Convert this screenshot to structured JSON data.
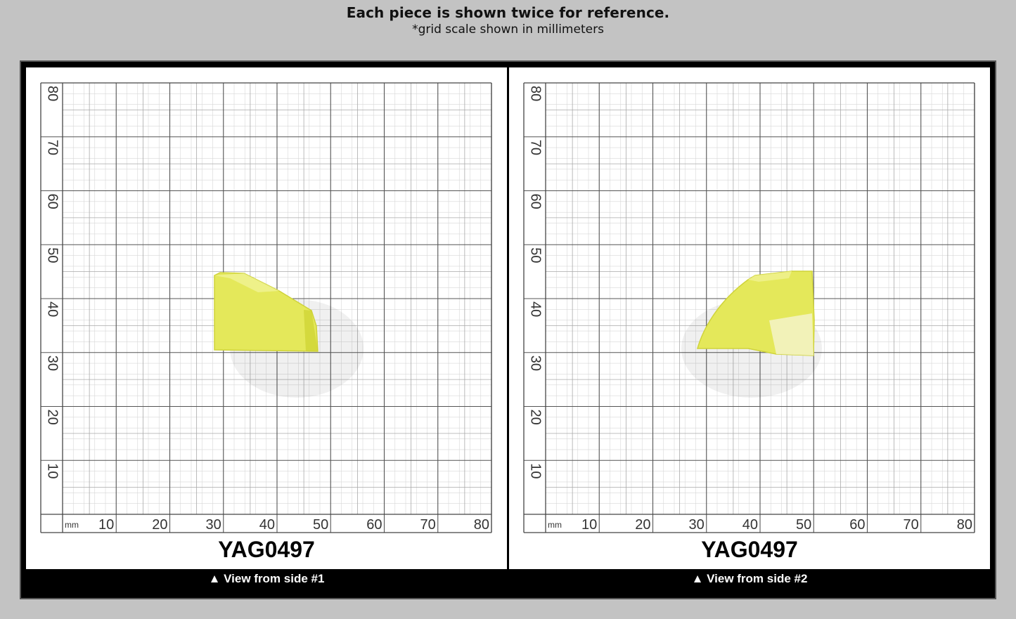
{
  "header": {
    "title": "Each piece is shown twice for reference.",
    "subtitle": "*grid scale shown in millimeters"
  },
  "panels": [
    {
      "code": "YAG0497",
      "caption": "▲ View from side #1",
      "unit": "mm",
      "x_ticks": [
        "10",
        "20",
        "30",
        "40",
        "50",
        "60",
        "70",
        "80"
      ],
      "y_ticks": [
        "10",
        "20",
        "30",
        "40",
        "50",
        "60",
        "70",
        "80"
      ],
      "crystal_color": "#e4e85a"
    },
    {
      "code": "YAG0497",
      "caption": "▲ View from side #2",
      "unit": "mm",
      "x_ticks": [
        "10",
        "20",
        "30",
        "40",
        "50",
        "60",
        "70",
        "80"
      ],
      "y_ticks": [
        "10",
        "20",
        "30",
        "40",
        "50",
        "60",
        "70",
        "80"
      ],
      "crystal_color": "#e4e85a"
    }
  ]
}
